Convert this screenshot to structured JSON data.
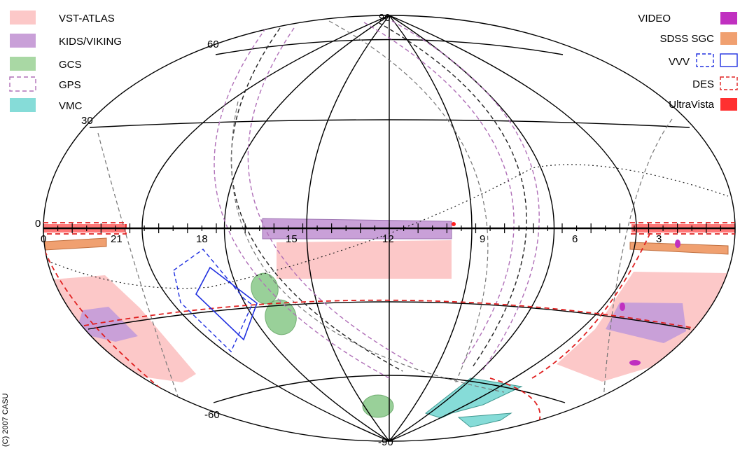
{
  "legend_left": [
    {
      "key": "vst_atlas",
      "label": "VST-ATLAS",
      "fill": "#fcc8c8",
      "stroke": "none",
      "dash": false
    },
    {
      "key": "kids_viking",
      "label": "KIDS/VIKING",
      "fill": "#c9a0d8",
      "stroke": "none",
      "dash": false
    },
    {
      "key": "gcs",
      "label": "GCS",
      "fill": "#a9d8a4",
      "stroke": "none",
      "dash": false
    },
    {
      "key": "gps",
      "label": "GPS",
      "fill": "none",
      "stroke": "#b070b8",
      "dash": true
    },
    {
      "key": "vmc",
      "label": "VMC",
      "fill": "#86dcd8",
      "stroke": "none",
      "dash": false
    }
  ],
  "legend_right": [
    {
      "key": "video",
      "label": "VIDEO",
      "fill": "#c030c0",
      "stroke": "none",
      "dash": false
    },
    {
      "key": "sdss_sgc",
      "label": "SDSS SGC",
      "fill": "#f0a070",
      "stroke": "none",
      "dash": false
    },
    {
      "key": "vvv",
      "label": "VVV",
      "fill": "none",
      "stroke": "#2030e0",
      "dash": "both"
    },
    {
      "key": "des",
      "label": "DES",
      "fill": "none",
      "stroke": "#e02020",
      "dash": true
    },
    {
      "key": "ultravista",
      "label": "UltraVista",
      "fill": "#ff3030",
      "stroke": "none",
      "dash": false
    }
  ],
  "axis_labels": {
    "dec_90": "90",
    "dec_60": "60",
    "dec_30": "30",
    "dec_0": "0",
    "dec_m60": "-60",
    "dec_m90": "-90",
    "ra_0": "0",
    "ra_21": "21",
    "ra_18": "18",
    "ra_15": "15",
    "ra_12": "12",
    "ra_9": "9",
    "ra_6": "6",
    "ra_3": "3"
  },
  "credit": "(C) 2007 CASU",
  "colors": {
    "vst_atlas": "#fcc8c8",
    "kids_viking": "#c9a0d8",
    "gcs": "#a9d8a4",
    "gps": "#b070b8",
    "vmc": "#86dcd8",
    "video": "#c030c0",
    "sdss_sgc": "#f0a070",
    "vvv": "#2030e0",
    "des": "#e02020",
    "ultravista": "#ff3030",
    "grid": "#000000",
    "ecliptic_dash": "#555555"
  }
}
